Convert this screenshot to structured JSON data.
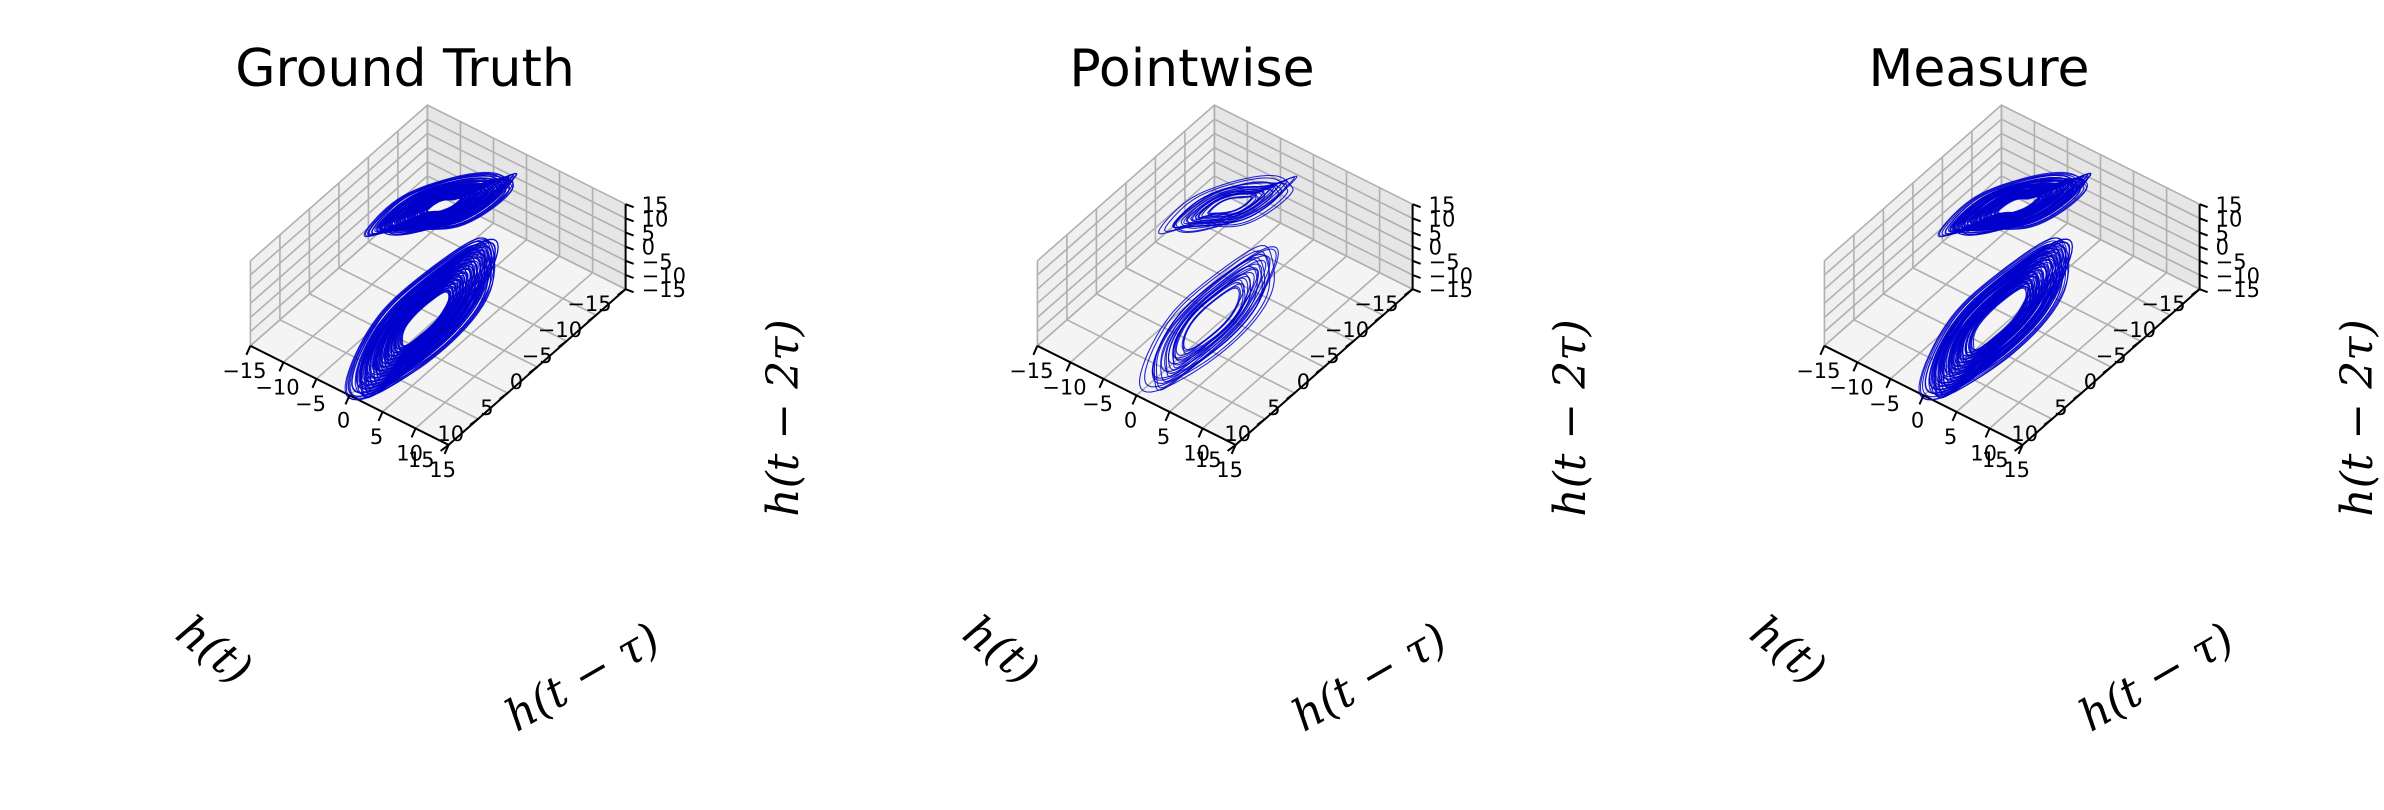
{
  "colors": {
    "trajectory": "#0000cc",
    "pane_left": "#f0f0f0",
    "pane_right": "#e6e6e6",
    "pane_floor": "#f4f4f4",
    "grid": "#b0b0b0"
  },
  "chart_data": [
    {
      "type": "line3d",
      "title": "Ground Truth",
      "xlabel": "h(t)",
      "ylabel": "h(t − τ)",
      "zlabel": "h(t − 2τ)",
      "xlim": [
        -15,
        15
      ],
      "ylim": [
        -15,
        15
      ],
      "zlim": [
        -15,
        15
      ],
      "xticks": [
        -15,
        -10,
        -5,
        0,
        5,
        10,
        15
      ],
      "yticks": [
        -15,
        -10,
        -5,
        0,
        5,
        10,
        15
      ],
      "zticks": [
        -15,
        -10,
        -5,
        0,
        5,
        10,
        15
      ],
      "grid": true,
      "series": [
        {
          "lobes": [
            {
              "center": [
                -11,
                -9,
                -6
              ],
              "radius_range": [
                2.5,
                10.5
              ],
              "loops": 90
            },
            {
              "center": [
                9,
                6,
                8
              ],
              "radius_range": [
                3.5,
                10.5
              ],
              "loops": 90
            }
          ]
        }
      ]
    },
    {
      "type": "line3d",
      "title": "Pointwise",
      "xlabel": "h(t)",
      "ylabel": "h(t − τ)",
      "zlabel": "h(t − 2τ)",
      "xlim": [
        -15,
        15
      ],
      "ylim": [
        -15,
        15
      ],
      "zlim": [
        -15,
        15
      ],
      "xticks": [
        -15,
        -10,
        -5,
        0,
        5,
        10,
        15
      ],
      "yticks": [
        -15,
        -10,
        -5,
        0,
        5,
        10,
        15
      ],
      "zticks": [
        -15,
        -10,
        -5,
        0,
        5,
        10,
        15
      ],
      "grid": true,
      "series": [
        {
          "lobes": [
            {
              "center": [
                -11,
                -9,
                -6
              ],
              "radius_range": [
                3.0,
                9.5
              ],
              "loops": 22
            },
            {
              "center": [
                9,
                6,
                8
              ],
              "radius_range": [
                4.0,
                9.5
              ],
              "loops": 22
            }
          ]
        }
      ]
    },
    {
      "type": "line3d",
      "title": "Measure",
      "xlabel": "h(t)",
      "ylabel": "h(t − τ)",
      "zlabel": "h(t − 2τ)",
      "xlim": [
        -15,
        15
      ],
      "ylim": [
        -15,
        15
      ],
      "zlim": [
        -15,
        15
      ],
      "xticks": [
        -15,
        -10,
        -5,
        0,
        5,
        10,
        15
      ],
      "yticks": [
        -15,
        -10,
        -5,
        0,
        5,
        10,
        15
      ],
      "zticks": [
        -15,
        -10,
        -5,
        0,
        5,
        10,
        15
      ],
      "grid": true,
      "series": [
        {
          "lobes": [
            {
              "center": [
                -11,
                -9,
                -6
              ],
              "radius_range": [
                3.0,
                10.5
              ],
              "loops": 75
            },
            {
              "center": [
                9,
                6,
                8
              ],
              "radius_range": [
                4.0,
                10.5
              ],
              "loops": 75
            }
          ]
        }
      ]
    }
  ]
}
